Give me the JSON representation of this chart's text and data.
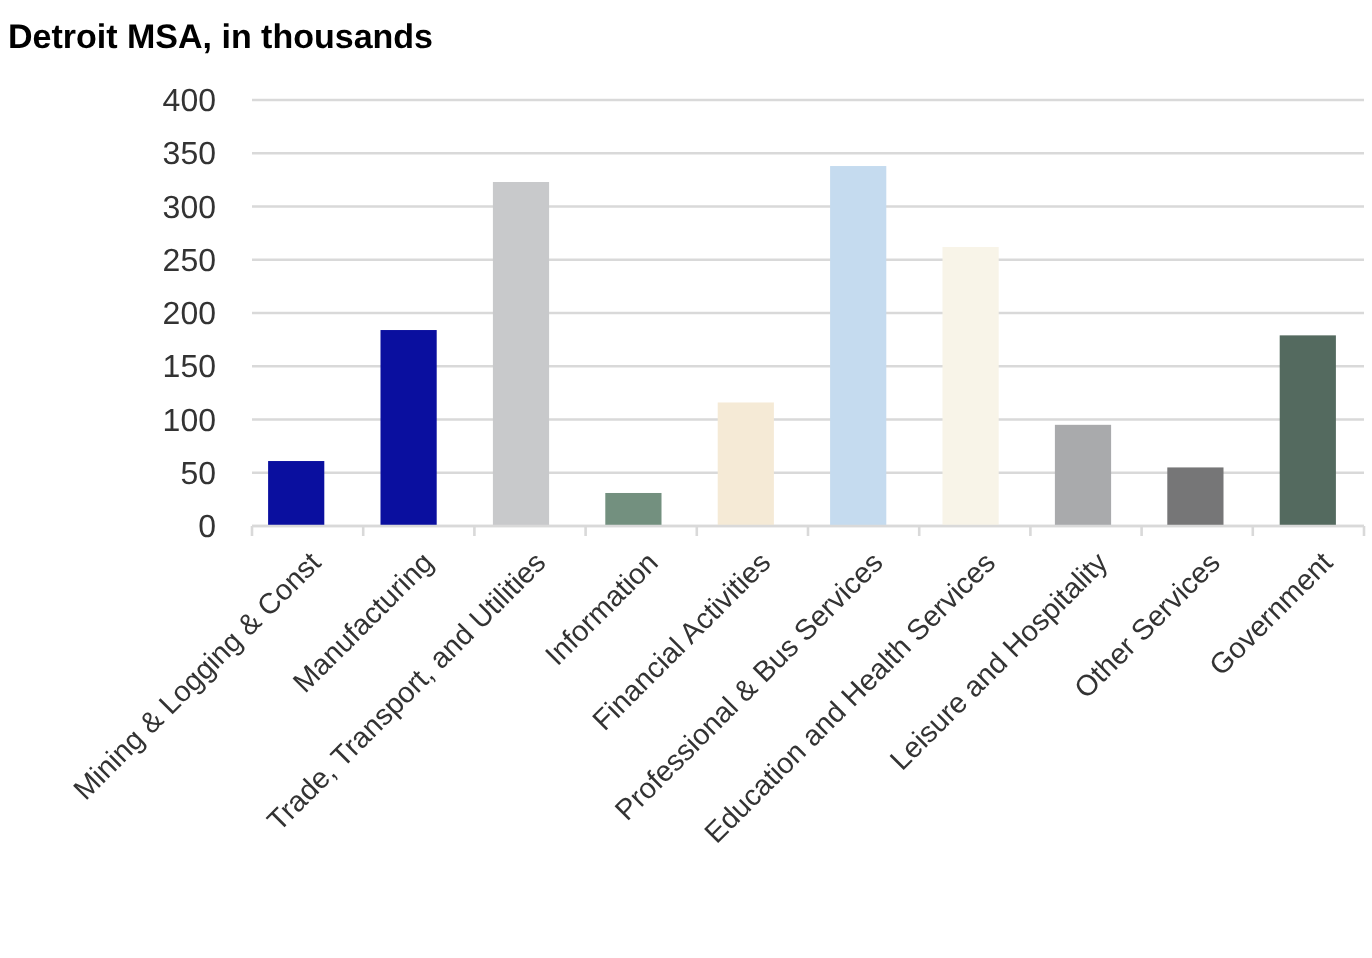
{
  "chart_data": {
    "type": "bar",
    "title": "Detroit MSA, in thousands",
    "categories": [
      "Mining & Logging & Const",
      "Manufacturing",
      "Trade, Transport, and Utilities",
      "Information",
      "Financial Activities",
      "Professional &  Bus Services",
      "Education and Health Services",
      "Leisure and Hospitality",
      "Other Services",
      "Government"
    ],
    "values": [
      61,
      184,
      323,
      31,
      116,
      338,
      262,
      95,
      55,
      179
    ],
    "colors": [
      "#0a0f9f",
      "#0a0f9f",
      "#c8c9cb",
      "#73907f",
      "#f5ead6",
      "#c5dbef",
      "#f8f4e8",
      "#a9aaac",
      "#767677",
      "#546a5f"
    ],
    "ylim": [
      0,
      400
    ],
    "yticks": [
      0,
      50,
      100,
      150,
      200,
      250,
      300,
      350,
      400
    ],
    "grid": "y"
  }
}
